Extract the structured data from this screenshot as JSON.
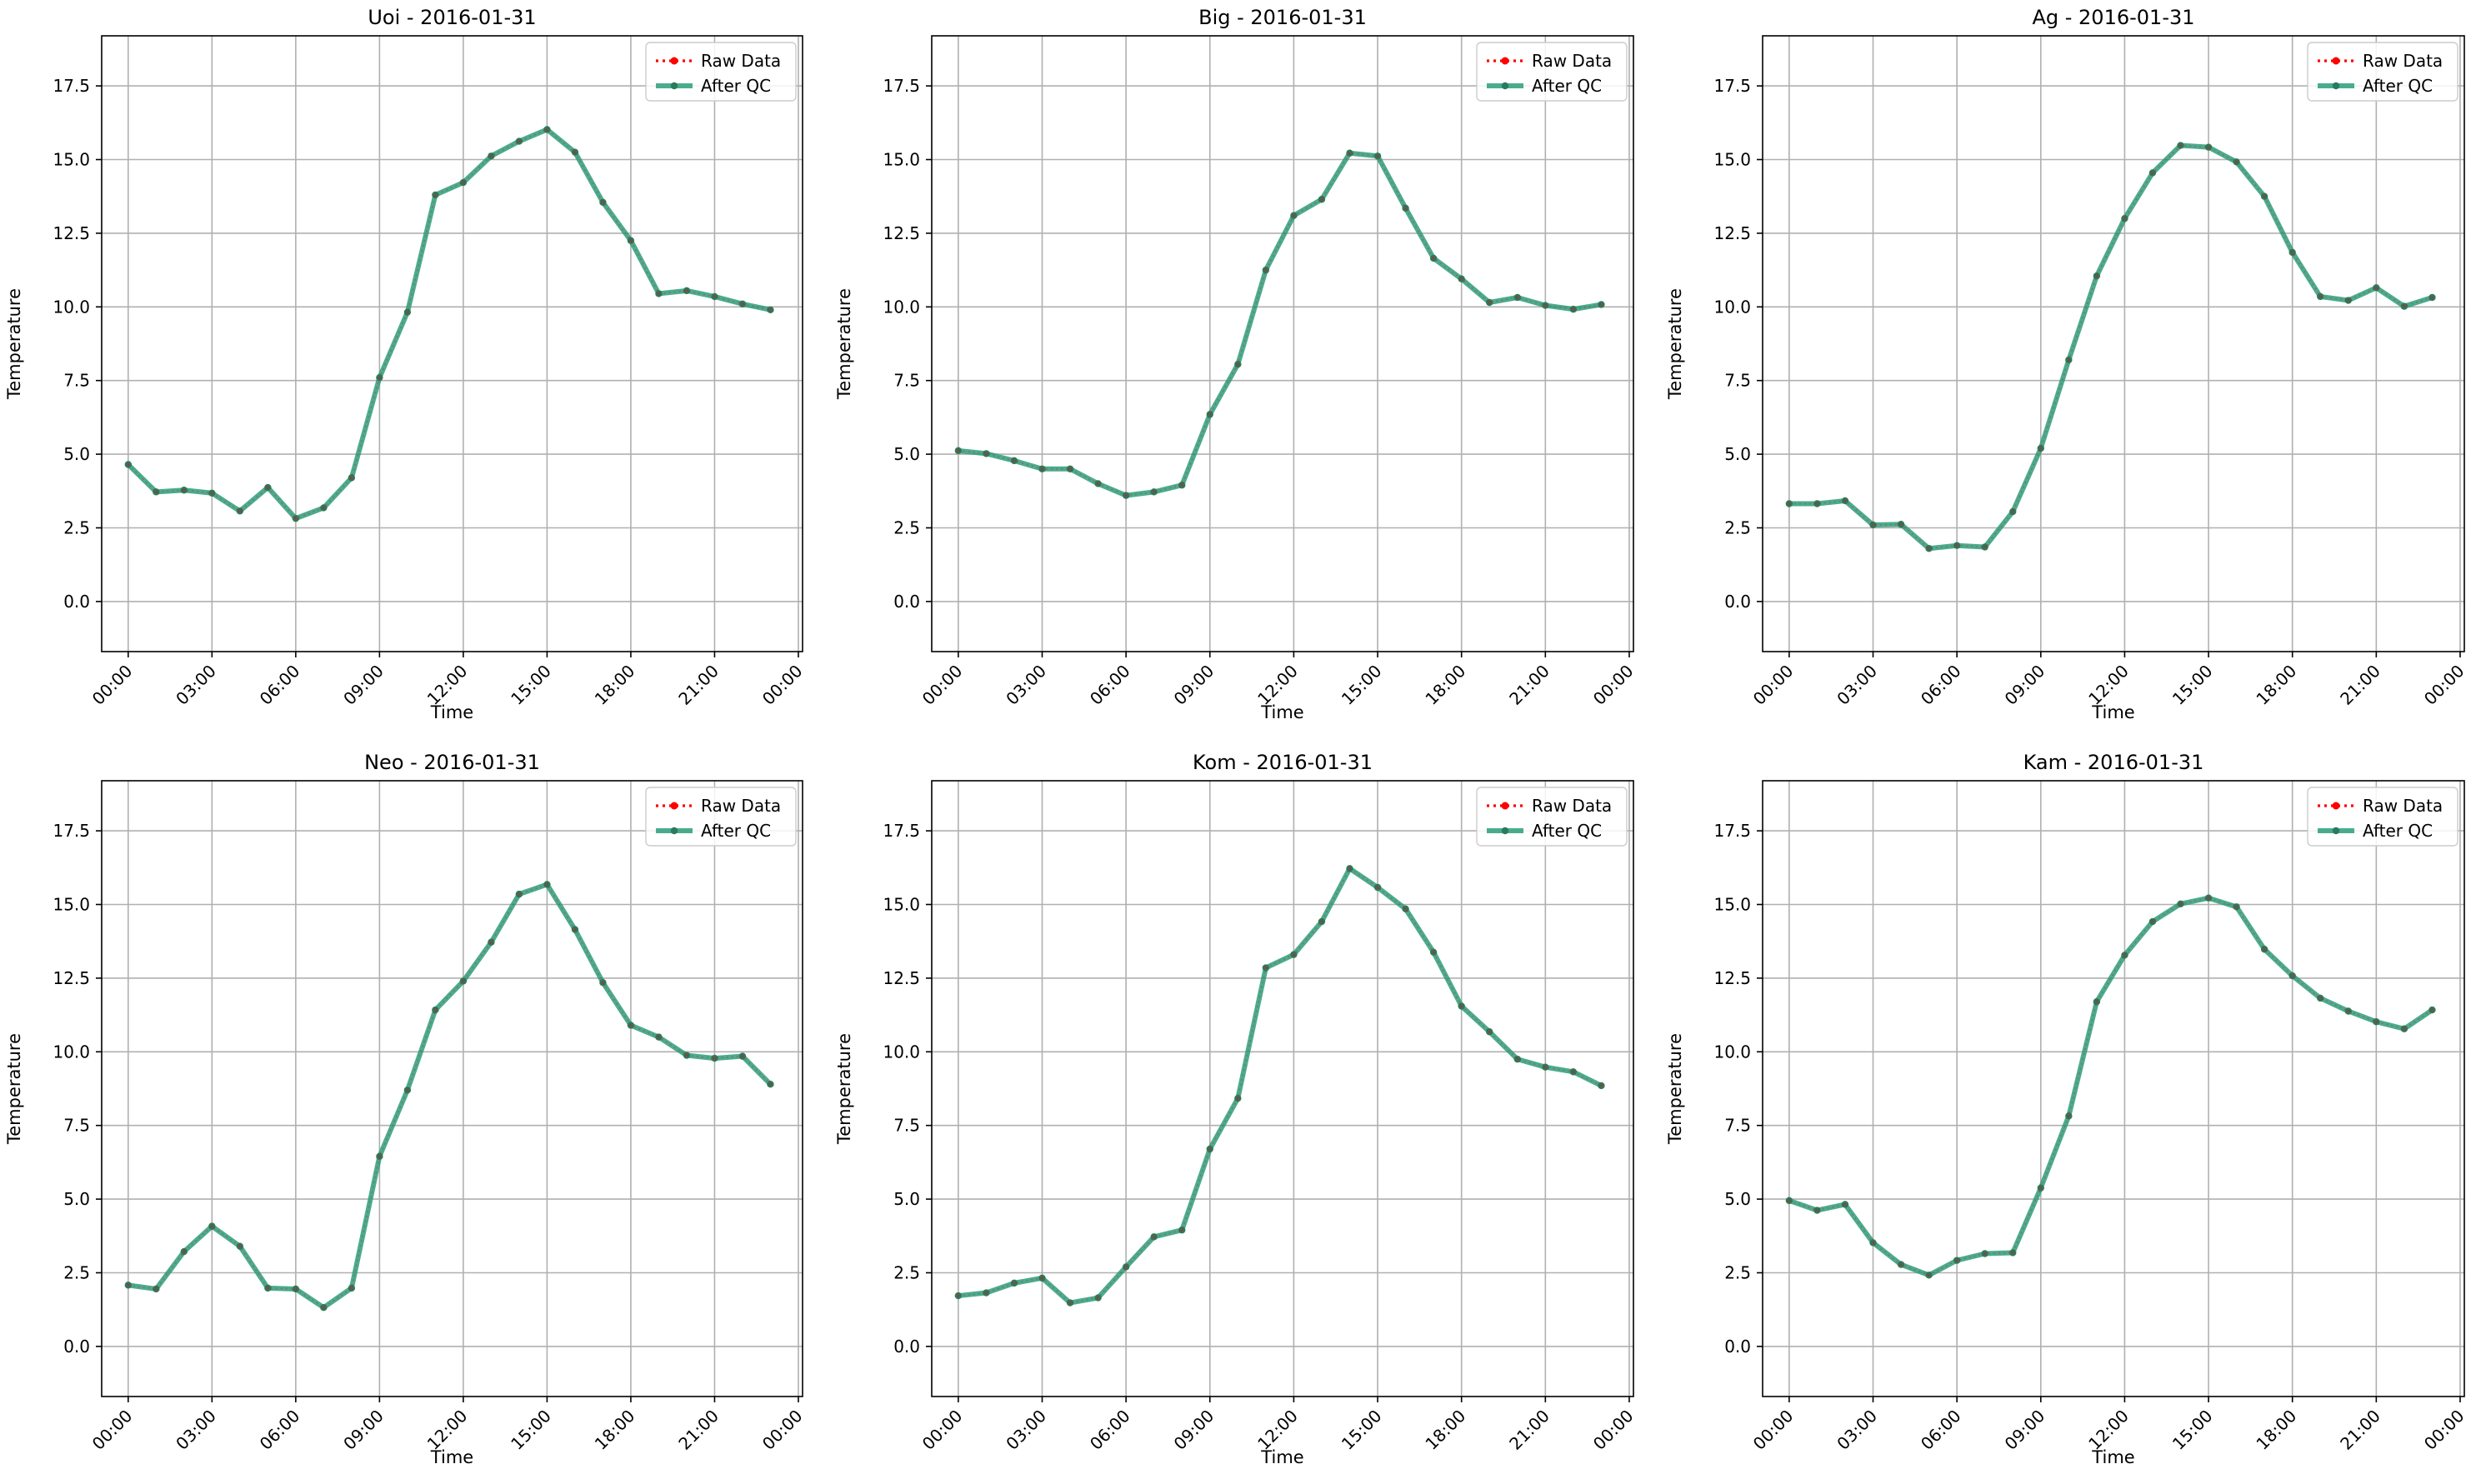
{
  "legend": {
    "raw_label": "Raw Data",
    "qc_label": "After QC",
    "placement": "upper-right"
  },
  "colors": {
    "raw": "#ff0000",
    "qc": "#2a9d7a",
    "qc_marker": "#2c7a5e",
    "grid": "#b0b0b0"
  },
  "chart_data": [
    {
      "type": "line",
      "title": "Uoi - 2016-01-31",
      "xlabel": "Time",
      "ylabel": "Temperature",
      "x_ticks": [
        "00:00",
        "03:00",
        "06:00",
        "09:00",
        "12:00",
        "15:00",
        "18:00",
        "21:00",
        "00:00"
      ],
      "y_ticks": [
        "0.0",
        "2.5",
        "5.0",
        "7.5",
        "10.0",
        "12.5",
        "15.0",
        "17.5"
      ],
      "xlim": [
        -0.95,
        24.15
      ],
      "ylim": [
        -1.7,
        19.2
      ],
      "grid": true,
      "hours": [
        0,
        1,
        2,
        3,
        4,
        5,
        6,
        7,
        8,
        9,
        10,
        11,
        12,
        13,
        14,
        15,
        16,
        17,
        18,
        19,
        20,
        21,
        22,
        23
      ],
      "series": [
        {
          "name": "Raw Data",
          "values": [
            4.65,
            3.72,
            3.78,
            3.68,
            3.07,
            3.87,
            2.82,
            3.18,
            4.2,
            7.6,
            9.82,
            13.8,
            14.22,
            15.12,
            15.62,
            16.02,
            15.25,
            13.55,
            12.25,
            10.45,
            10.55,
            10.35,
            10.1,
            9.9
          ]
        },
        {
          "name": "After QC",
          "values": [
            4.65,
            3.72,
            3.78,
            3.68,
            3.07,
            3.87,
            2.82,
            3.18,
            4.2,
            7.6,
            9.82,
            13.8,
            14.22,
            15.12,
            15.62,
            16.02,
            15.25,
            13.55,
            12.25,
            10.45,
            10.55,
            10.35,
            10.1,
            9.9
          ]
        }
      ]
    },
    {
      "type": "line",
      "title": "Big - 2016-01-31",
      "xlabel": "Time",
      "ylabel": "Temperature",
      "x_ticks": [
        "00:00",
        "03:00",
        "06:00",
        "09:00",
        "12:00",
        "15:00",
        "18:00",
        "21:00",
        "00:00"
      ],
      "y_ticks": [
        "0.0",
        "2.5",
        "5.0",
        "7.5",
        "10.0",
        "12.5",
        "15.0",
        "17.5"
      ],
      "xlim": [
        -0.95,
        24.15
      ],
      "ylim": [
        -1.7,
        19.2
      ],
      "grid": true,
      "hours": [
        0,
        1,
        2,
        3,
        4,
        5,
        6,
        7,
        8,
        9,
        10,
        11,
        12,
        13,
        14,
        15,
        16,
        17,
        18,
        19,
        20,
        21,
        22,
        23
      ],
      "series": [
        {
          "name": "Raw Data",
          "values": [
            5.12,
            5.02,
            4.78,
            4.5,
            4.5,
            4.0,
            3.6,
            3.72,
            3.95,
            6.35,
            8.05,
            11.25,
            13.1,
            13.65,
            15.22,
            15.12,
            13.35,
            11.65,
            10.95,
            10.15,
            10.32,
            10.05,
            9.92,
            10.08
          ]
        },
        {
          "name": "After QC",
          "values": [
            5.12,
            5.02,
            4.78,
            4.5,
            4.5,
            4.0,
            3.6,
            3.72,
            3.95,
            6.35,
            8.05,
            11.25,
            13.1,
            13.65,
            15.22,
            15.12,
            13.35,
            11.65,
            10.95,
            10.15,
            10.32,
            10.05,
            9.92,
            10.08
          ]
        }
      ]
    },
    {
      "type": "line",
      "title": "Ag - 2016-01-31",
      "xlabel": "Time",
      "ylabel": "Temperature",
      "x_ticks": [
        "00:00",
        "03:00",
        "06:00",
        "09:00",
        "12:00",
        "15:00",
        "18:00",
        "21:00",
        "00:00"
      ],
      "y_ticks": [
        "0.0",
        "2.5",
        "5.0",
        "7.5",
        "10.0",
        "12.5",
        "15.0",
        "17.5"
      ],
      "xlim": [
        -0.95,
        24.15
      ],
      "ylim": [
        -1.7,
        19.2
      ],
      "grid": true,
      "hours": [
        0,
        1,
        2,
        3,
        4,
        5,
        6,
        7,
        8,
        9,
        10,
        11,
        12,
        13,
        14,
        15,
        16,
        17,
        18,
        19,
        20,
        21,
        22,
        23
      ],
      "series": [
        {
          "name": "Raw Data",
          "values": [
            3.32,
            3.32,
            3.42,
            2.6,
            2.62,
            1.8,
            1.9,
            1.85,
            3.05,
            5.2,
            8.2,
            11.05,
            13.0,
            14.55,
            15.48,
            15.42,
            14.92,
            13.75,
            11.85,
            10.35,
            10.22,
            10.65,
            10.02,
            10.32
          ]
        },
        {
          "name": "After QC",
          "values": [
            3.32,
            3.32,
            3.42,
            2.6,
            2.62,
            1.8,
            1.9,
            1.85,
            3.05,
            5.2,
            8.2,
            11.05,
            13.0,
            14.55,
            15.48,
            15.42,
            14.92,
            13.75,
            11.85,
            10.35,
            10.22,
            10.65,
            10.02,
            10.32
          ]
        }
      ]
    },
    {
      "type": "line",
      "title": "Neo - 2016-01-31",
      "xlabel": "Time",
      "ylabel": "Temperature",
      "x_ticks": [
        "00:00",
        "03:00",
        "06:00",
        "09:00",
        "12:00",
        "15:00",
        "18:00",
        "21:00",
        "00:00"
      ],
      "y_ticks": [
        "0.0",
        "2.5",
        "5.0",
        "7.5",
        "10.0",
        "12.5",
        "15.0",
        "17.5"
      ],
      "xlim": [
        -0.95,
        24.15
      ],
      "ylim": [
        -1.7,
        19.2
      ],
      "grid": true,
      "hours": [
        0,
        1,
        2,
        3,
        4,
        5,
        6,
        7,
        8,
        9,
        10,
        11,
        12,
        13,
        14,
        15,
        16,
        17,
        18,
        19,
        20,
        21,
        22,
        23
      ],
      "series": [
        {
          "name": "Raw Data",
          "values": [
            2.08,
            1.95,
            3.22,
            4.08,
            3.4,
            1.98,
            1.95,
            1.32,
            1.98,
            6.45,
            8.7,
            11.42,
            12.4,
            13.72,
            15.35,
            15.68,
            14.15,
            12.35,
            10.9,
            10.5,
            9.88,
            9.78,
            9.85,
            8.9
          ]
        },
        {
          "name": "After QC",
          "values": [
            2.08,
            1.95,
            3.22,
            4.08,
            3.4,
            1.98,
            1.95,
            1.32,
            1.98,
            6.45,
            8.7,
            11.42,
            12.4,
            13.72,
            15.35,
            15.68,
            14.15,
            12.35,
            10.9,
            10.5,
            9.88,
            9.78,
            9.85,
            8.9
          ]
        }
      ]
    },
    {
      "type": "line",
      "title": "Kom - 2016-01-31",
      "xlabel": "Time",
      "ylabel": "Temperature",
      "x_ticks": [
        "00:00",
        "03:00",
        "06:00",
        "09:00",
        "12:00",
        "15:00",
        "18:00",
        "21:00",
        "00:00"
      ],
      "y_ticks": [
        "0.0",
        "2.5",
        "5.0",
        "7.5",
        "10.0",
        "12.5",
        "15.0",
        "17.5"
      ],
      "xlim": [
        -0.95,
        24.15
      ],
      "ylim": [
        -1.7,
        19.2
      ],
      "grid": true,
      "hours": [
        0,
        1,
        2,
        3,
        4,
        5,
        6,
        7,
        8,
        9,
        10,
        11,
        12,
        13,
        14,
        15,
        16,
        17,
        18,
        19,
        20,
        21,
        22,
        23
      ],
      "series": [
        {
          "name": "Raw Data",
          "values": [
            1.72,
            1.82,
            2.15,
            2.32,
            1.48,
            1.65,
            2.7,
            3.72,
            3.95,
            6.7,
            8.42,
            12.85,
            13.3,
            14.42,
            16.22,
            15.58,
            14.85,
            13.38,
            11.55,
            10.68,
            9.75,
            9.48,
            9.32,
            8.85
          ]
        },
        {
          "name": "After QC",
          "values": [
            1.72,
            1.82,
            2.15,
            2.32,
            1.48,
            1.65,
            2.7,
            3.72,
            3.95,
            6.7,
            8.42,
            12.85,
            13.3,
            14.42,
            16.22,
            15.58,
            14.85,
            13.38,
            11.55,
            10.68,
            9.75,
            9.48,
            9.32,
            8.85
          ]
        }
      ]
    },
    {
      "type": "line",
      "title": "Kam - 2016-01-31",
      "xlabel": "Time",
      "ylabel": "Temperature",
      "x_ticks": [
        "00:00",
        "03:00",
        "06:00",
        "09:00",
        "12:00",
        "15:00",
        "18:00",
        "21:00",
        "00:00"
      ],
      "y_ticks": [
        "0.0",
        "2.5",
        "5.0",
        "7.5",
        "10.0",
        "12.5",
        "15.0",
        "17.5"
      ],
      "xlim": [
        -0.95,
        24.15
      ],
      "ylim": [
        -1.7,
        19.2
      ],
      "grid": true,
      "hours": [
        0,
        1,
        2,
        3,
        4,
        5,
        6,
        7,
        8,
        9,
        10,
        11,
        12,
        13,
        14,
        15,
        16,
        17,
        18,
        19,
        20,
        21,
        22,
        23
      ],
      "series": [
        {
          "name": "Raw Data",
          "values": [
            4.95,
            4.62,
            4.82,
            3.52,
            2.78,
            2.42,
            2.92,
            3.15,
            3.18,
            5.38,
            7.82,
            11.7,
            13.28,
            14.42,
            15.02,
            15.22,
            14.92,
            13.48,
            12.58,
            11.82,
            11.38,
            11.02,
            10.78,
            11.42
          ]
        },
        {
          "name": "After QC",
          "values": [
            4.95,
            4.62,
            4.82,
            3.52,
            2.78,
            2.42,
            2.92,
            3.15,
            3.18,
            5.38,
            7.82,
            11.7,
            13.28,
            14.42,
            15.02,
            15.22,
            14.92,
            13.48,
            12.58,
            11.82,
            11.38,
            11.02,
            10.78,
            11.42
          ]
        }
      ]
    }
  ]
}
